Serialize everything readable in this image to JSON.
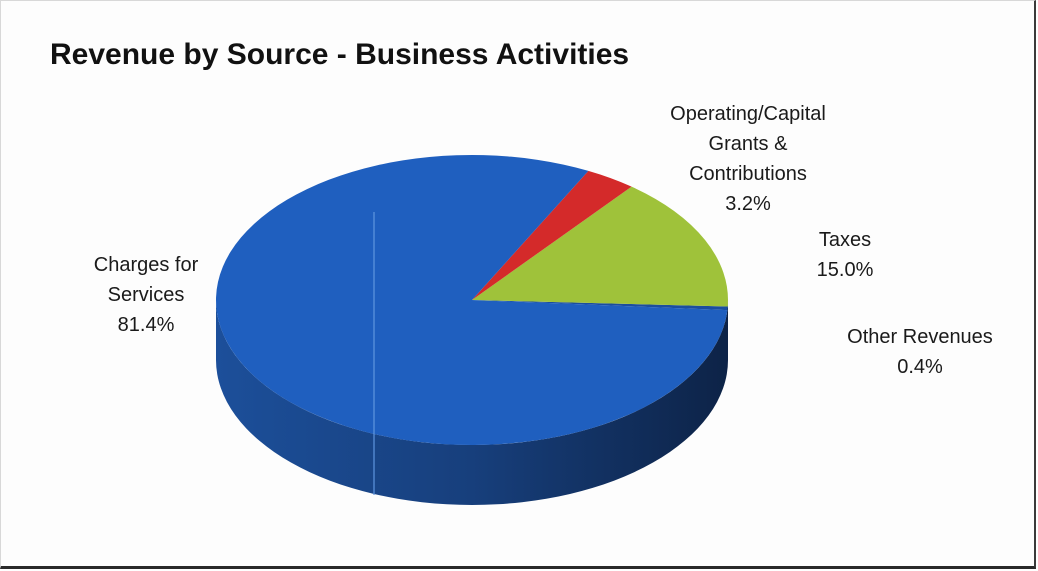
{
  "chart_data": {
    "type": "pie",
    "title": "Revenue by Source - Business Activities",
    "slices": [
      {
        "label_lines": [
          "Charges for",
          "Services"
        ],
        "value": 81.4,
        "value_label": "81.4%",
        "color": "#1f5fbf"
      },
      {
        "label_lines": [
          "Operating/Capital",
          "Grants &",
          "Contributions"
        ],
        "value": 3.2,
        "value_label": "3.2%",
        "color": "#d42a2a"
      },
      {
        "label_lines": [
          "Taxes"
        ],
        "value": 15.0,
        "value_label": "15.0%",
        "color": "#9fc23a"
      },
      {
        "label_lines": [
          "Other Revenues"
        ],
        "value": 0.4,
        "value_label": "0.4%",
        "color": "#1b4e9e"
      }
    ],
    "style": "3d-pie",
    "legend": "none"
  }
}
